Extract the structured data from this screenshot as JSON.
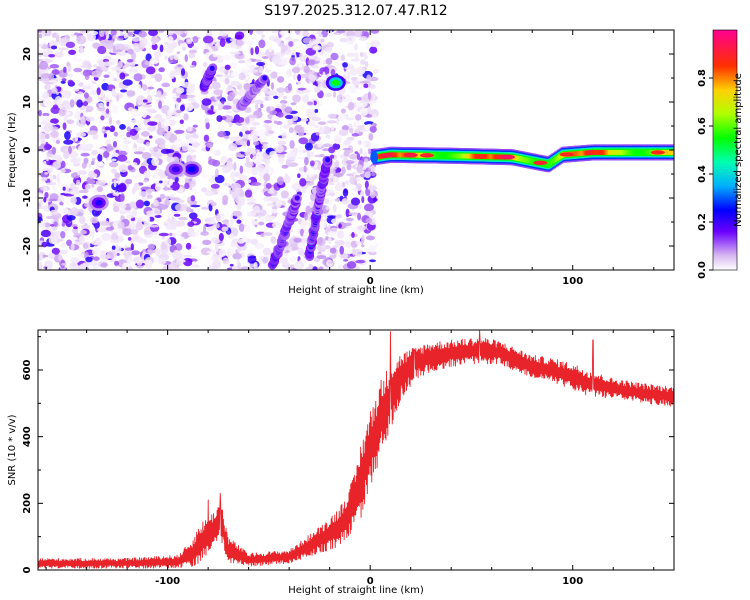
{
  "title": "S197.2025.312.07.47.R12",
  "chart_data": [
    {
      "type": "heatmap",
      "xlabel": "Height of straight line (km)",
      "ylabel": "Frequency (Hz)",
      "xlim": [
        -164,
        150
      ],
      "ylim": [
        -25,
        25
      ],
      "xticks": [
        -100,
        0,
        100
      ],
      "yticks": [
        -20,
        -10,
        0,
        10,
        20
      ],
      "colorbar": {
        "label": "Normalized spectral amplitude",
        "range": [
          0,
          1
        ],
        "ticks": [
          0.0,
          0.2,
          0.4,
          0.6,
          0.8
        ],
        "tick_labels": [
          "0.0",
          "0.2",
          "0.4",
          "0.6",
          "0.8"
        ]
      },
      "gap_x": [
        -86,
        -82
      ],
      "features": [
        {
          "kind": "band",
          "x_start": 2,
          "x_end": 150,
          "freq_points": [
            [
              2,
              -1.5
            ],
            [
              10,
              -1
            ],
            [
              40,
              -1.2
            ],
            [
              70,
              -1.5
            ],
            [
              82,
              -2.5
            ],
            [
              88,
              -3
            ],
            [
              95,
              -1
            ],
            [
              110,
              -0.5
            ],
            [
              150,
              -0.5
            ]
          ],
          "peak": 0.95
        },
        {
          "kind": "streak",
          "points": [
            [
              -48,
              -24
            ],
            [
              -40,
              -15
            ],
            [
              -36,
              -10
            ]
          ],
          "peak": 0.3
        },
        {
          "kind": "streak",
          "points": [
            [
              -30,
              -22
            ],
            [
              -25,
              -10
            ],
            [
              -21,
              -2
            ]
          ],
          "peak": 0.3
        },
        {
          "kind": "streak",
          "points": [
            [
              -82,
              13
            ],
            [
              -78,
              17
            ]
          ],
          "peak": 0.35
        },
        {
          "kind": "streak",
          "points": [
            [
              -64,
              9
            ],
            [
              -52,
              15
            ]
          ],
          "peak": 0.25
        },
        {
          "kind": "blob",
          "x": -17,
          "y": 14,
          "peak": 0.55
        },
        {
          "kind": "blob",
          "x": -134,
          "y": -11,
          "peak": 0.22
        },
        {
          "kind": "blob",
          "x": -88,
          "y": -4,
          "peak": 0.25
        },
        {
          "kind": "blob",
          "x": -96,
          "y": -4,
          "peak": 0.2
        }
      ]
    },
    {
      "type": "line",
      "xlabel": "Height of straight line (km)",
      "ylabel": "SNR (10 * v/v)",
      "xlim": [
        -164,
        150
      ],
      "ylim": [
        0,
        720
      ],
      "xticks": [
        -100,
        0,
        100
      ],
      "yticks": [
        0,
        200,
        400,
        600
      ],
      "color": "#e8232a",
      "envelope": [
        [
          -164,
          20,
          15
        ],
        [
          -120,
          20,
          15
        ],
        [
          -95,
          25,
          20
        ],
        [
          -88,
          50,
          40
        ],
        [
          -84,
          80,
          60
        ],
        [
          -78,
          120,
          50
        ],
        [
          -74,
          150,
          60
        ],
        [
          -70,
          60,
          40
        ],
        [
          -60,
          30,
          20
        ],
        [
          -40,
          40,
          20
        ],
        [
          -25,
          90,
          40
        ],
        [
          -15,
          130,
          60
        ],
        [
          -8,
          200,
          80
        ],
        [
          -4,
          280,
          120
        ],
        [
          0,
          360,
          120
        ],
        [
          5,
          450,
          120
        ],
        [
          10,
          520,
          100
        ],
        [
          15,
          580,
          70
        ],
        [
          22,
          620,
          50
        ],
        [
          30,
          640,
          45
        ],
        [
          40,
          650,
          40
        ],
        [
          55,
          660,
          40
        ],
        [
          65,
          650,
          35
        ],
        [
          80,
          610,
          35
        ],
        [
          90,
          600,
          35
        ],
        [
          100,
          580,
          40
        ],
        [
          108,
          560,
          40
        ],
        [
          120,
          545,
          30
        ],
        [
          135,
          530,
          30
        ],
        [
          150,
          520,
          30
        ]
      ],
      "spikes": [
        [
          -80,
          210
        ],
        [
          -74,
          230
        ],
        [
          -73,
          180
        ],
        [
          10,
          715
        ],
        [
          22,
          660
        ],
        [
          54,
          720
        ],
        [
          110,
          690
        ]
      ]
    }
  ]
}
